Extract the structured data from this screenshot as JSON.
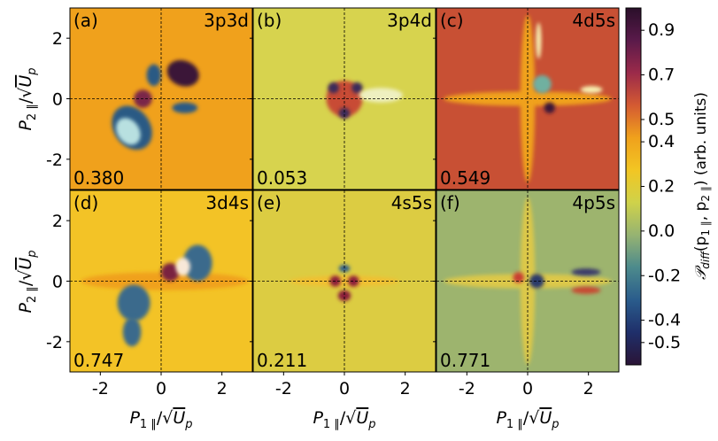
{
  "chart_data": {
    "type": "heatmap",
    "title": "",
    "xlabel_main": "P",
    "xlabel_sub": "1 ∥",
    "xlabel_denominator": "U",
    "xlabel_denominator_sub": "p",
    "ylabel_main": "P",
    "ylabel_sub": "2 ∥",
    "ylabel_denominator": "U",
    "ylabel_denominator_sub": "p",
    "xlim": [
      -3,
      3
    ],
    "ylim": [
      -3,
      3
    ],
    "x_ticks": [
      -2,
      0,
      2
    ],
    "y_ticks": [
      -2,
      0,
      2
    ],
    "x_tick_labels": [
      "-2",
      "0",
      "2"
    ],
    "y_tick_labels": [
      "-2",
      "0",
      "2"
    ],
    "grid": false,
    "reference_lines": "dashed lines at x = 0 and y = 0",
    "colorbar": {
      "label_prefix": "𝒫",
      "label_sub": "diff",
      "label_args_open": "(p",
      "label_arg1_sub": "1 ∥",
      "label_comma": ", p",
      "label_arg2_sub": "2 ∥",
      "label_suffix": ") (arb. units)",
      "range": [
        -0.6,
        1.0
      ],
      "ticks": [
        0.9,
        0.7,
        0.5,
        0.4,
        0.2,
        0.0,
        -0.2,
        -0.4,
        -0.5
      ],
      "tick_labels": [
        "0.9",
        "0.7",
        "0.5",
        "0.4",
        "0.2",
        "0.0",
        "-0.2",
        "-0.4",
        "-0.5"
      ],
      "colormap": "twilight-shifted style diverging",
      "stops": [
        "#2a1436",
        "#1f2f6a",
        "#2a5c8c",
        "#4c8a8c",
        "#96b372",
        "#cfd24a",
        "#f2c623",
        "#f0a11c",
        "#d45a32",
        "#9b2a4a",
        "#5a1a4a",
        "#2a0f2a"
      ]
    },
    "panels": [
      {
        "letter": "(a)",
        "config": "3p3d",
        "value": "0.380",
        "background": "#f0a11c"
      },
      {
        "letter": "(b)",
        "config": "3p4d",
        "value": "0.053",
        "background": "#d7d34e"
      },
      {
        "letter": "(c)",
        "config": "4d5s",
        "value": "0.549",
        "background": "#c85034"
      },
      {
        "letter": "(d)",
        "config": "3d4s",
        "value": "0.747",
        "background": "#f3c326"
      },
      {
        "letter": "(e)",
        "config": "4s5s",
        "value": "0.211",
        "background": "#dccc42"
      },
      {
        "letter": "(f)",
        "config": "4p5s",
        "value": "0.771",
        "background": "#9db46e"
      }
    ]
  }
}
